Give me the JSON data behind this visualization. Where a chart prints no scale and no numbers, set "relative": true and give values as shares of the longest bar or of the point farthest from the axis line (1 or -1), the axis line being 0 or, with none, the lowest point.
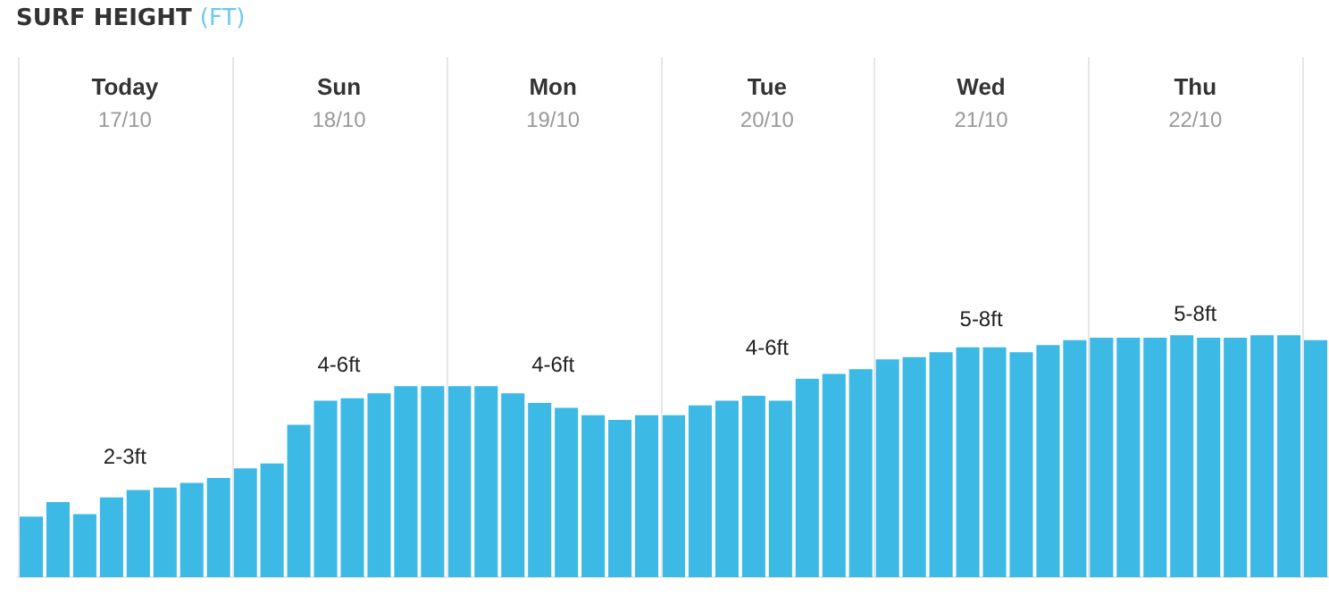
{
  "chart_data": {
    "type": "bar",
    "title": "SURF HEIGHT (FT)",
    "relative": true,
    "categories": [
      null,
      null,
      null,
      null,
      null,
      null,
      null,
      null,
      null,
      null,
      null,
      null,
      null,
      null,
      null,
      null,
      null,
      null,
      null,
      null,
      null,
      null,
      null,
      null,
      null,
      null,
      null,
      null,
      null,
      null,
      null,
      null,
      null,
      null,
      null,
      null,
      null,
      null,
      null,
      null,
      null,
      null,
      null,
      null,
      null,
      null,
      null,
      null,
      null
    ],
    "values": [
      0.25,
      0.31,
      0.26,
      0.33,
      0.36,
      0.37,
      0.39,
      0.41,
      0.45,
      0.47,
      0.63,
      0.73,
      0.74,
      0.76,
      0.79,
      0.79,
      0.79,
      0.79,
      0.76,
      0.72,
      0.7,
      0.67,
      0.65,
      0.67,
      0.67,
      0.71,
      0.73,
      0.75,
      0.73,
      0.82,
      0.84,
      0.86,
      0.9,
      0.91,
      0.93,
      0.95,
      0.95,
      0.93,
      0.96,
      0.98,
      0.99,
      0.99,
      0.99,
      1,
      0.99,
      0.99,
      1,
      1,
      0.98
    ],
    "color": "#3db9e6",
    "grid": "x",
    "annotations": [
      "Today",
      "17/10",
      "2-3ft",
      "Sun",
      "18/10",
      "4-6ft",
      "Mon",
      "19/10",
      "4-6ft",
      "Tue",
      "20/10",
      "4-6ft",
      "Wed",
      "21/10",
      "5-8ft",
      "Thu",
      "22/10",
      "5-8ft"
    ]
  }
}
